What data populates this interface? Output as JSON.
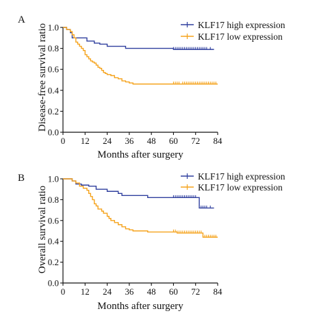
{
  "chart_data": [
    {
      "panel_label": "A",
      "type": "line",
      "step": true,
      "xlabel": "Months after surgery",
      "ylabel": "Disease-free survival ratio",
      "xlim": [
        0,
        84
      ],
      "ylim": [
        0,
        1.0
      ],
      "x_ticks": [
        "0",
        "12",
        "24",
        "36",
        "48",
        "60",
        "72",
        "84"
      ],
      "y_ticks": [
        "0.0",
        "0.2",
        "0.4",
        "0.6",
        "0.8",
        "1.0"
      ],
      "legend_position": "top-right",
      "series": [
        {
          "name": "KLF17 high expression",
          "color": "#2f3f9e",
          "points": [
            [
              0,
              1.0
            ],
            [
              2,
              0.98
            ],
            [
              4,
              0.95
            ],
            [
              5,
              0.9
            ],
            [
              13,
              0.87
            ],
            [
              17,
              0.85
            ],
            [
              20,
              0.84
            ],
            [
              24,
              0.82
            ],
            [
              34,
              0.8
            ],
            [
              60,
              0.8
            ],
            [
              60,
              0.79
            ],
            [
              82,
              0.79
            ]
          ],
          "censor_x": [
            60,
            61,
            62,
            63,
            64,
            65,
            66,
            67,
            68,
            69,
            70,
            71,
            72,
            73,
            74,
            75,
            76,
            77,
            78,
            80
          ]
        },
        {
          "name": "KLF17 low expression",
          "color": "#f5a21a",
          "points": [
            [
              0,
              1.0
            ],
            [
              2,
              0.98
            ],
            [
              4,
              0.96
            ],
            [
              5,
              0.93
            ],
            [
              6,
              0.9
            ],
            [
              7,
              0.86
            ],
            [
              8,
              0.84
            ],
            [
              9,
              0.82
            ],
            [
              10,
              0.8
            ],
            [
              11,
              0.78
            ],
            [
              12,
              0.74
            ],
            [
              13,
              0.72
            ],
            [
              14,
              0.7
            ],
            [
              15,
              0.68
            ],
            [
              16,
              0.67
            ],
            [
              17,
              0.66
            ],
            [
              18,
              0.64
            ],
            [
              19,
              0.62
            ],
            [
              20,
              0.61
            ],
            [
              21,
              0.59
            ],
            [
              22,
              0.57
            ],
            [
              23,
              0.56
            ],
            [
              24,
              0.55
            ],
            [
              26,
              0.54
            ],
            [
              28,
              0.52
            ],
            [
              30,
              0.51
            ],
            [
              32,
              0.49
            ],
            [
              34,
              0.48
            ],
            [
              36,
              0.47
            ],
            [
              38,
              0.46
            ],
            [
              60,
              0.46
            ],
            [
              84,
              0.46
            ]
          ],
          "censor_x": [
            60,
            61,
            62,
            63,
            65,
            66,
            67,
            68,
            69,
            70,
            71,
            72,
            73,
            74,
            75,
            76,
            77,
            78,
            79,
            80,
            81,
            82,
            83
          ]
        }
      ]
    },
    {
      "panel_label": "B",
      "type": "line",
      "step": true,
      "xlabel": "Months after surgery",
      "ylabel": "Overall survival ratio",
      "xlim": [
        0,
        84
      ],
      "ylim": [
        0,
        1.0
      ],
      "x_ticks": [
        "0",
        "12",
        "24",
        "36",
        "48",
        "60",
        "72",
        "84"
      ],
      "y_ticks": [
        "0.0",
        "0.2",
        "0.4",
        "0.6",
        "0.8",
        "1.0"
      ],
      "legend_position": "top-right",
      "series": [
        {
          "name": "KLF17 high expression",
          "color": "#2f3f9e",
          "points": [
            [
              0,
              1.0
            ],
            [
              5,
              0.98
            ],
            [
              7,
              0.95
            ],
            [
              10,
              0.94
            ],
            [
              14,
              0.93
            ],
            [
              18,
              0.9
            ],
            [
              24,
              0.88
            ],
            [
              30,
              0.86
            ],
            [
              32,
              0.84
            ],
            [
              46,
              0.82
            ],
            [
              74,
              0.82
            ],
            [
              74,
              0.72
            ],
            [
              82,
              0.72
            ]
          ],
          "censor_x": [
            60,
            61,
            62,
            63,
            64,
            65,
            66,
            67,
            68,
            69,
            70,
            71,
            72,
            75,
            76,
            77,
            78,
            80
          ]
        },
        {
          "name": "KLF17 low expression",
          "color": "#f5a21a",
          "points": [
            [
              0,
              1.0
            ],
            [
              5,
              0.98
            ],
            [
              7,
              0.96
            ],
            [
              9,
              0.93
            ],
            [
              11,
              0.91
            ],
            [
              13,
              0.89
            ],
            [
              14,
              0.86
            ],
            [
              15,
              0.83
            ],
            [
              16,
              0.8
            ],
            [
              17,
              0.76
            ],
            [
              18,
              0.74
            ],
            [
              19,
              0.71
            ],
            [
              21,
              0.69
            ],
            [
              22,
              0.67
            ],
            [
              24,
              0.64
            ],
            [
              25,
              0.62
            ],
            [
              26,
              0.6
            ],
            [
              28,
              0.58
            ],
            [
              30,
              0.56
            ],
            [
              32,
              0.54
            ],
            [
              34,
              0.52
            ],
            [
              36,
              0.51
            ],
            [
              38,
              0.5
            ],
            [
              44,
              0.5
            ],
            [
              46,
              0.49
            ],
            [
              60,
              0.49
            ],
            [
              62,
              0.48
            ],
            [
              76,
              0.48
            ],
            [
              76,
              0.44
            ],
            [
              84,
              0.44
            ]
          ],
          "censor_x": [
            60,
            61,
            62,
            63,
            64,
            65,
            66,
            67,
            68,
            69,
            70,
            71,
            72,
            73,
            74,
            75,
            77,
            78,
            79,
            80,
            81,
            82,
            83
          ]
        }
      ]
    }
  ]
}
